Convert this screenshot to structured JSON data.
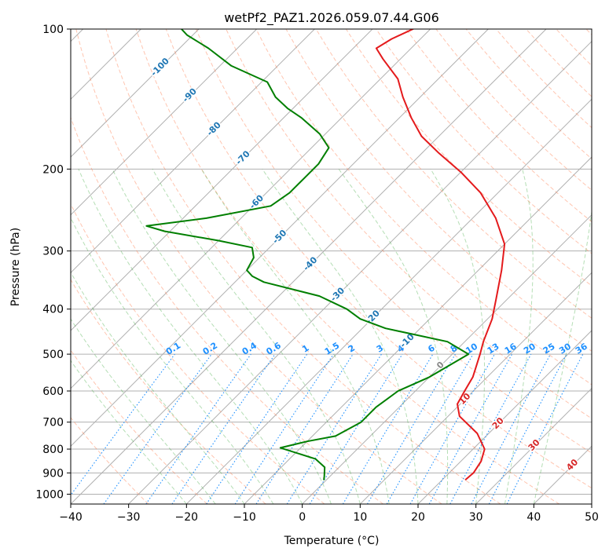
{
  "chart_data": {
    "type": "line",
    "title": "wetPf2_PAZ1.2026.059.07.44.G06",
    "xlabel": "Temperature (°C)",
    "ylabel": "Pressure (hPa)",
    "xlim": [
      -40,
      50
    ],
    "ylim": [
      1050,
      100
    ],
    "x_ticks": [
      -40,
      -30,
      -20,
      -10,
      0,
      10,
      20,
      30,
      40,
      50
    ],
    "x_tick_labels": [
      "−40",
      "−30",
      "−20",
      "−10",
      "0",
      "10",
      "20",
      "30",
      "40",
      "50"
    ],
    "y_ticks": [
      100,
      200,
      300,
      400,
      500,
      600,
      700,
      800,
      900,
      1000
    ],
    "y_tick_labels": [
      "100",
      "200",
      "300",
      "400",
      "500",
      "600",
      "700",
      "800",
      "900",
      "1000"
    ],
    "y_scale": "log",
    "isotherm_skew_deg": 45,
    "temperature_profile": {
      "name": "Temperature",
      "color": "#e41a1c",
      "points": [
        [
          24.0,
          930
        ],
        [
          24.2,
          900
        ],
        [
          23.5,
          850
        ],
        [
          22.0,
          800
        ],
        [
          18.0,
          740
        ],
        [
          12.0,
          680
        ],
        [
          9.5,
          640
        ],
        [
          8.5,
          600
        ],
        [
          7.5,
          560
        ],
        [
          6.2,
          530
        ],
        [
          4.8,
          500
        ],
        [
          3.2,
          470
        ],
        [
          0.8,
          420
        ],
        [
          -2.0,
          380
        ],
        [
          -6.0,
          330
        ],
        [
          -10.0,
          290
        ],
        [
          -16.0,
          255
        ],
        [
          -23.0,
          225
        ],
        [
          -30.0,
          203
        ],
        [
          -37.0,
          185
        ],
        [
          -43.0,
          170
        ],
        [
          -48.0,
          155
        ],
        [
          -53.0,
          140
        ],
        [
          -57.0,
          128
        ],
        [
          -63.0,
          116
        ],
        [
          -66.0,
          110
        ],
        [
          -65.0,
          105
        ],
        [
          -63.0,
          100
        ]
      ]
    },
    "dewpoint_profile": {
      "name": "Dewpoint",
      "color": "#007f00",
      "points": [
        [
          -0.5,
          930
        ],
        [
          -1.0,
          915
        ],
        [
          -2.5,
          875
        ],
        [
          -5.5,
          840
        ],
        [
          -13.5,
          795
        ],
        [
          -10.0,
          770
        ],
        [
          -6.0,
          750
        ],
        [
          -4.0,
          700
        ],
        [
          -4.0,
          650
        ],
        [
          -3.0,
          600
        ],
        [
          0.0,
          560
        ],
        [
          2.8,
          500
        ],
        [
          -3.0,
          470
        ],
        [
          -16.0,
          440
        ],
        [
          -22.0,
          420
        ],
        [
          -26.0,
          400
        ],
        [
          -33.0,
          375
        ],
        [
          -45.0,
          350
        ],
        [
          -48.0,
          340
        ],
        [
          -50.0,
          330
        ],
        [
          -51.0,
          310
        ],
        [
          -53.0,
          295
        ],
        [
          -60.0,
          285
        ],
        [
          -71.0,
          272
        ],
        [
          -75.0,
          265
        ],
        [
          -66.0,
          255
        ],
        [
          -57.0,
          240
        ],
        [
          -56.0,
          225
        ],
        [
          -56.0,
          210
        ],
        [
          -56.0,
          195
        ],
        [
          -57.0,
          180
        ],
        [
          -61.0,
          168
        ],
        [
          -67.0,
          155
        ],
        [
          -71.0,
          148
        ],
        [
          -75.0,
          140
        ],
        [
          -79.0,
          130
        ],
        [
          -88.0,
          120
        ],
        [
          -95.0,
          110
        ],
        [
          -101.0,
          103
        ],
        [
          -103.0,
          100
        ]
      ]
    },
    "isotherm_labels": [
      "-100",
      "-90",
      "-80",
      "-70",
      "-60",
      "-50",
      "-40",
      "-30",
      "-20",
      "-10"
    ],
    "isotherm_label_values": [
      -100,
      -90,
      -80,
      -70,
      -60,
      -50,
      -40,
      -30,
      -20,
      -10
    ],
    "isotherm_label_pressures": [
      120,
      138,
      163,
      188,
      234,
      278,
      318,
      370,
      414,
      465
    ],
    "mixing_ratio_labels": [
      "0.1",
      "0.2",
      "0.4",
      "0.6",
      "1",
      "1.5",
      "2",
      "3",
      "4",
      "6",
      "8",
      "10",
      "13",
      "16",
      "20",
      "25",
      "30",
      "36"
    ],
    "mixing_ratio_values": [
      0.1,
      0.2,
      0.4,
      0.6,
      1,
      1.5,
      2,
      3,
      4,
      6,
      8,
      10,
      13,
      16,
      20,
      25,
      30,
      36
    ],
    "warm_isotherm_labels": [
      "0",
      "10",
      "20",
      "30",
      "40"
    ],
    "warm_isotherm_values": [
      0,
      10,
      20,
      30,
      40
    ],
    "warm_isotherm_pressures": [
      525,
      620,
      700,
      780,
      860
    ],
    "legend": "none",
    "grid": true
  },
  "colors": {
    "temperature": "#e41a1c",
    "dewpoint": "#007f00",
    "isotherm_label": "#1f77b4",
    "mixing_ratio": "#1e90ff",
    "dry_adiabat": "#ff7f50",
    "moist_adiabat": "#2ca02c",
    "warm_label_zero": "#888888",
    "warm_label": "#d62728"
  }
}
